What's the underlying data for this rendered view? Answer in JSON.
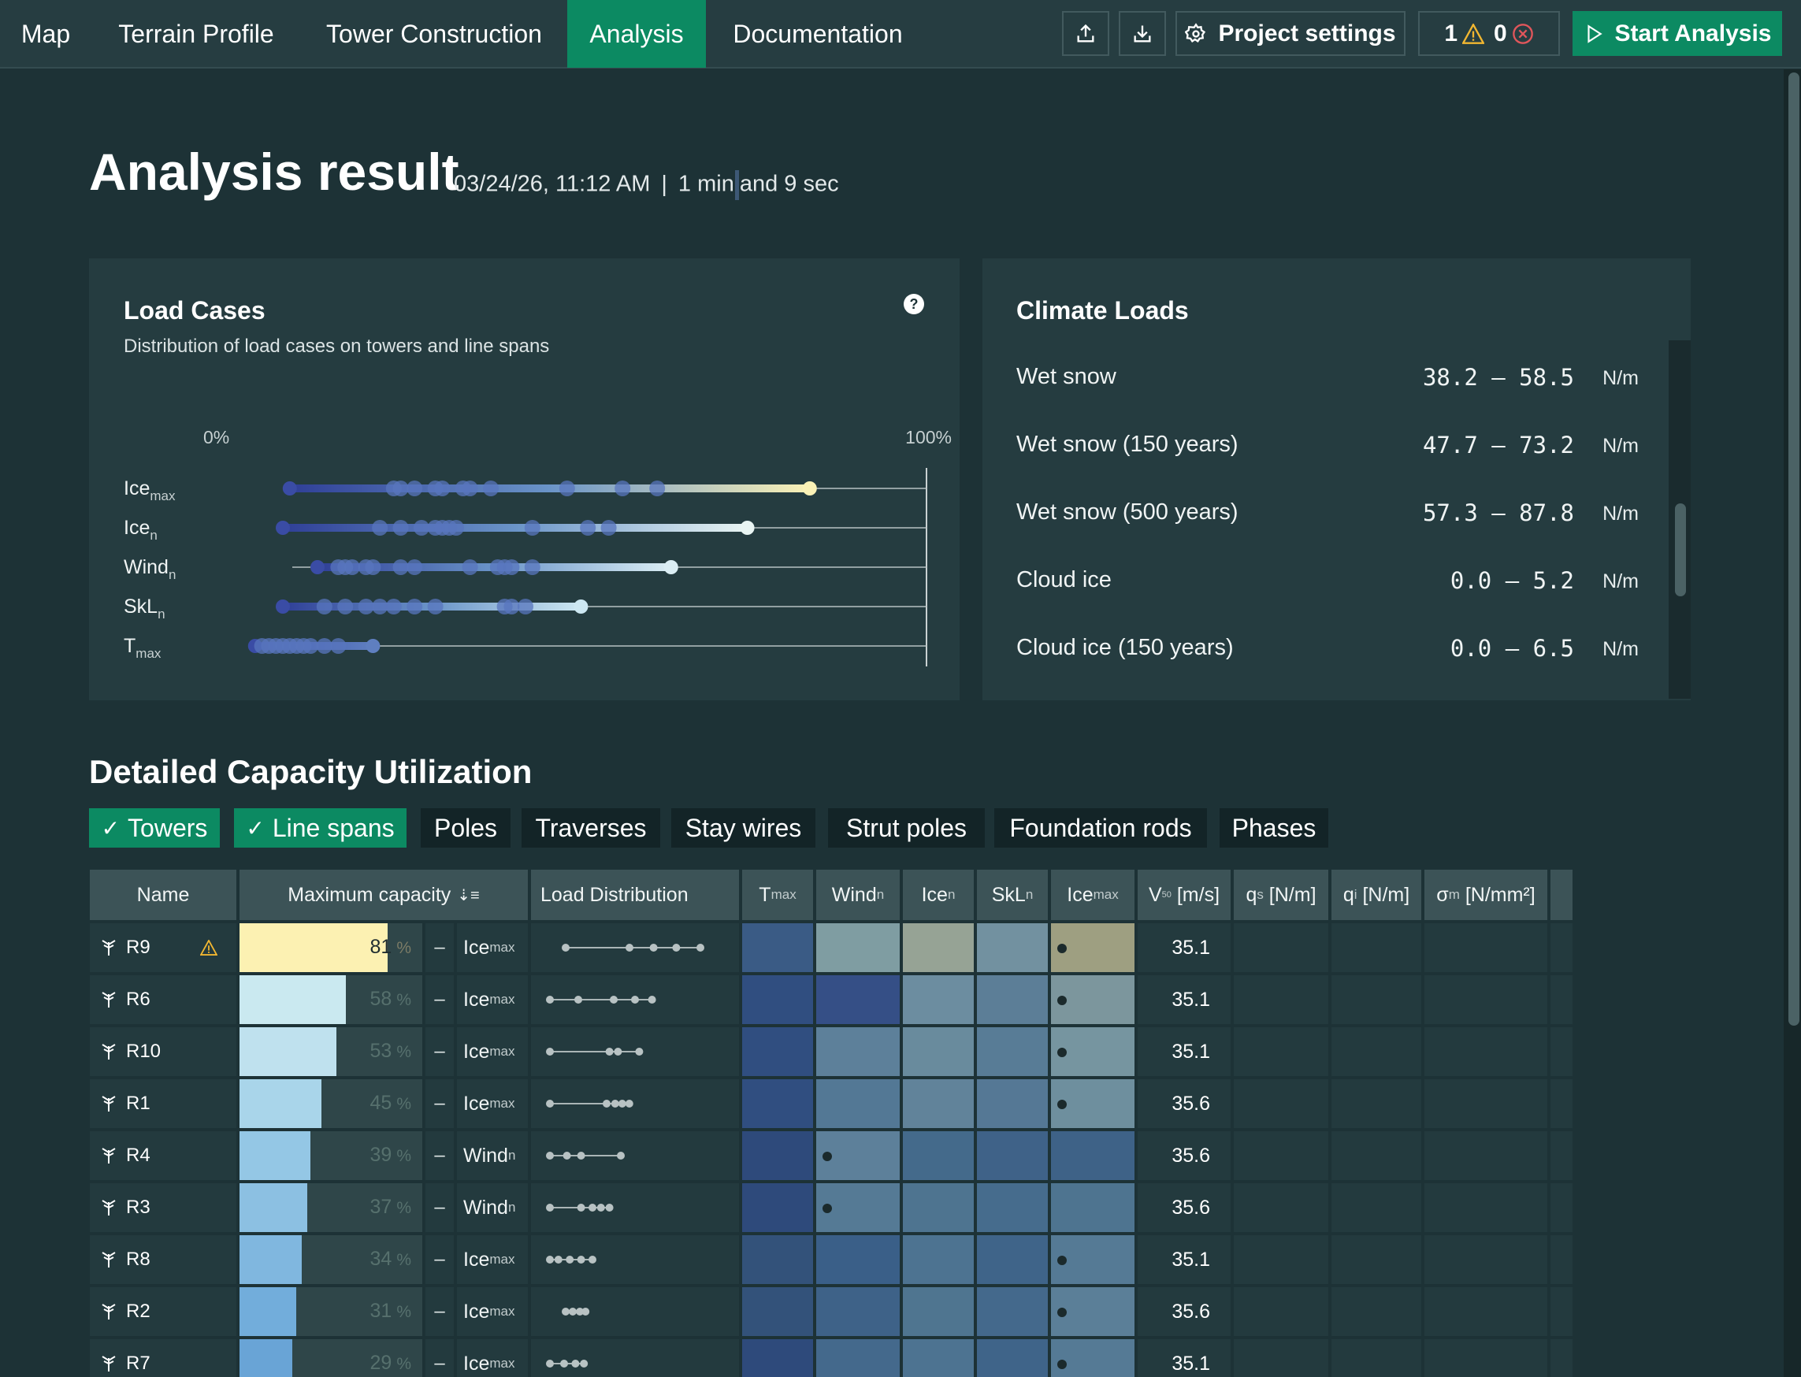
{
  "nav": {
    "tabs": [
      {
        "label": "Map",
        "active": false
      },
      {
        "label": "Terrain Profile",
        "active": false
      },
      {
        "label": "Tower Construction",
        "active": false
      },
      {
        "label": "Analysis",
        "active": true
      },
      {
        "label": "Documentation",
        "active": false
      }
    ],
    "upload_icon": "upload-icon",
    "download_icon": "download-icon",
    "settings_label": "Project settings",
    "warnings_count": "1",
    "errors_count": "0",
    "start_label": "Start Analysis",
    "accent_color": "#0c8a62"
  },
  "header": {
    "title": "Analysis result",
    "date": "03/24/26, 11:12 AM",
    "separator": "|",
    "duration_a": "1 min",
    "duration_b": "and 9 sec"
  },
  "load_cases": {
    "title": "Load Cases",
    "subtitle": "Distribution of load cases on towers and line spans",
    "help": "?",
    "axis_min": "0%",
    "axis_max": "100%",
    "chart_data": {
      "type": "scatter",
      "x_range": [
        0,
        100
      ],
      "series": [
        {
          "name": "Ice",
          "sub": "max",
          "values": [
            6,
            21,
            22,
            24,
            27,
            28,
            31,
            32,
            35,
            46,
            54,
            59,
            81
          ]
        },
        {
          "name": "Ice",
          "sub": "n",
          "values": [
            5,
            19,
            22,
            25,
            27,
            28,
            29,
            30,
            41,
            49,
            52,
            72
          ]
        },
        {
          "name": "Wind",
          "sub": "n",
          "values": [
            10,
            13,
            14,
            15,
            17,
            18,
            22,
            24,
            32,
            36,
            37,
            38,
            41,
            61
          ]
        },
        {
          "name": "SkL",
          "sub": "n",
          "values": [
            5,
            11,
            14,
            17,
            19,
            21,
            24,
            27,
            37,
            38,
            40,
            48
          ]
        },
        {
          "name": "T",
          "sub": "max",
          "values": [
            1,
            2,
            3,
            4,
            5,
            6,
            7,
            8,
            9,
            11,
            13,
            18
          ]
        }
      ]
    }
  },
  "climate": {
    "title": "Climate Loads",
    "rows": [
      {
        "label": "Wet snow",
        "value": "38.2 – 58.5",
        "unit": "N/m"
      },
      {
        "label": "Wet snow (150 years)",
        "value": "47.7 – 73.2",
        "unit": "N/m"
      },
      {
        "label": "Wet snow (500 years)",
        "value": "57.3 – 87.8",
        "unit": "N/m"
      },
      {
        "label": "Cloud ice",
        "value": "0.0 – 5.2",
        "unit": "N/m"
      },
      {
        "label": "Cloud ice (150 years)",
        "value": "0.0 – 6.5",
        "unit": "N/m"
      }
    ]
  },
  "capacity": {
    "title": "Detailed Capacity Utilization",
    "filters": [
      {
        "label": "Towers",
        "on": true
      },
      {
        "label": "Line spans",
        "on": true
      },
      {
        "label": "Poles",
        "on": false
      },
      {
        "label": "Traverses",
        "on": false
      },
      {
        "label": "Stay wires",
        "on": false
      },
      {
        "label": "Strut poles",
        "on": false
      },
      {
        "label": "Foundation rods",
        "on": false
      },
      {
        "label": "Phases",
        "on": false
      }
    ],
    "columns": {
      "name": "Name",
      "max_capacity": "Maximum capacity",
      "sort_icon": "sort-descending-icon",
      "load_distribution": "Load Distribution",
      "tmax": "T",
      "tmax_sub": "max",
      "wind": "Wind",
      "wind_sub": "n",
      "ice": "Ice",
      "ice_sub": "n",
      "skl": "SkL",
      "skl_sub": "n",
      "icemax": "Ice",
      "icemax_sub": "max",
      "v50": "V",
      "v50_sub": "50",
      "v50_unit": " [m/s]",
      "qs": "q",
      "qs_sub": "s",
      "qs_unit": " [N/m]",
      "qi": "q",
      "qi_sub": "i",
      "qi_unit": " [N/m]",
      "sigma": "σ",
      "sigma_sub": "m",
      "sigma_unit": " [N/mm²]"
    },
    "rows": [
      {
        "name": "R9",
        "warning": true,
        "capacity": 81,
        "pct": "%",
        "dash": "–",
        "case": "Ice",
        "case_sub": "max",
        "dist": [
          0,
          45,
          62,
          78,
          95
        ],
        "v50": "35.1",
        "heat": {
          "tmax": "#3a5b85",
          "wind": "#7f9da2",
          "ice": "#96a395",
          "skl": "#7291a0",
          "icemax": "#9e9f81"
        },
        "dot": "icemax"
      },
      {
        "name": "R6",
        "warning": false,
        "capacity": 58,
        "pct": "%",
        "dash": "–",
        "case": "Ice",
        "case_sub": "max",
        "dist": [
          0,
          20,
          45,
          60,
          72
        ],
        "v50": "35.1",
        "heat": {
          "tmax": "#304e80",
          "wind": "#354f86",
          "ice": "#6c8da0",
          "skl": "#5c7e97",
          "icemax": "#7c969d"
        },
        "dot": "icemax"
      },
      {
        "name": "R10",
        "warning": false,
        "capacity": 53,
        "pct": "%",
        "dash": "–",
        "case": "Ice",
        "case_sub": "max",
        "dist": [
          0,
          42,
          48,
          63
        ],
        "v50": "35.1",
        "heat": {
          "tmax": "#304e80",
          "wind": "#5d809a",
          "ice": "#698b9d",
          "skl": "#587c96",
          "icemax": "#7695a0"
        },
        "dot": "icemax"
      },
      {
        "name": "R1",
        "warning": false,
        "capacity": 45,
        "pct": "%",
        "dash": "–",
        "case": "Ice",
        "case_sub": "max",
        "dist": [
          0,
          40,
          46,
          51,
          56
        ],
        "v50": "35.6",
        "heat": {
          "tmax": "#304e80",
          "wind": "#537895",
          "ice": "#61839a",
          "skl": "#557895",
          "icemax": "#6e8f9e"
        },
        "dot": "icemax"
      },
      {
        "name": "R4",
        "warning": false,
        "capacity": 39,
        "pct": "%",
        "dash": "–",
        "case": "Wind",
        "case_sub": "n",
        "dist": [
          0,
          12,
          22,
          50
        ],
        "v50": "35.6",
        "heat": {
          "tmax": "#2e4a7b",
          "wind": "#5d809a",
          "ice": "#446a8b",
          "skl": "#3f6288",
          "icemax": "#3e6287"
        },
        "dot": "wind"
      },
      {
        "name": "R3",
        "warning": false,
        "capacity": 37,
        "pct": "%",
        "dash": "–",
        "case": "Wind",
        "case_sub": "n",
        "dist": [
          0,
          22,
          30,
          36,
          42
        ],
        "v50": "35.6",
        "heat": {
          "tmax": "#2e4a7b",
          "wind": "#557a95",
          "ice": "#4e7490",
          "skl": "#466c8d",
          "icemax": "#4e7490"
        },
        "dot": "wind"
      },
      {
        "name": "R8",
        "warning": false,
        "capacity": 34,
        "pct": "%",
        "dash": "–",
        "case": "Ice",
        "case_sub": "max",
        "dist": [
          0,
          6,
          14,
          22,
          30
        ],
        "v50": "35.1",
        "heat": {
          "tmax": "#33527a",
          "wind": "#3a5f88",
          "ice": "#4d7391",
          "skl": "#3f6489",
          "icemax": "#557a95"
        },
        "dot": "icemax"
      },
      {
        "name": "R2",
        "warning": false,
        "capacity": 31,
        "pct": "%",
        "dash": "–",
        "case": "Ice",
        "case_sub": "max",
        "dist": [
          0,
          5,
          10,
          14
        ],
        "v50": "35.6",
        "heat": {
          "tmax": "#33527a",
          "wind": "#3e6288",
          "ice": "#4f7590",
          "skl": "#44698c",
          "icemax": "#5b7f98"
        },
        "dot": "icemax"
      },
      {
        "name": "R7",
        "warning": false,
        "capacity": 29,
        "pct": "%",
        "dash": "–",
        "case": "Ice",
        "case_sub": "max",
        "dist": [
          0,
          10,
          18,
          24
        ],
        "v50": "35.1",
        "heat": {
          "tmax": "#2e4a7b",
          "wind": "#44698c",
          "ice": "#4d7391",
          "skl": "#3f6489",
          "icemax": "#557a95"
        },
        "dot": "icemax"
      }
    ]
  }
}
